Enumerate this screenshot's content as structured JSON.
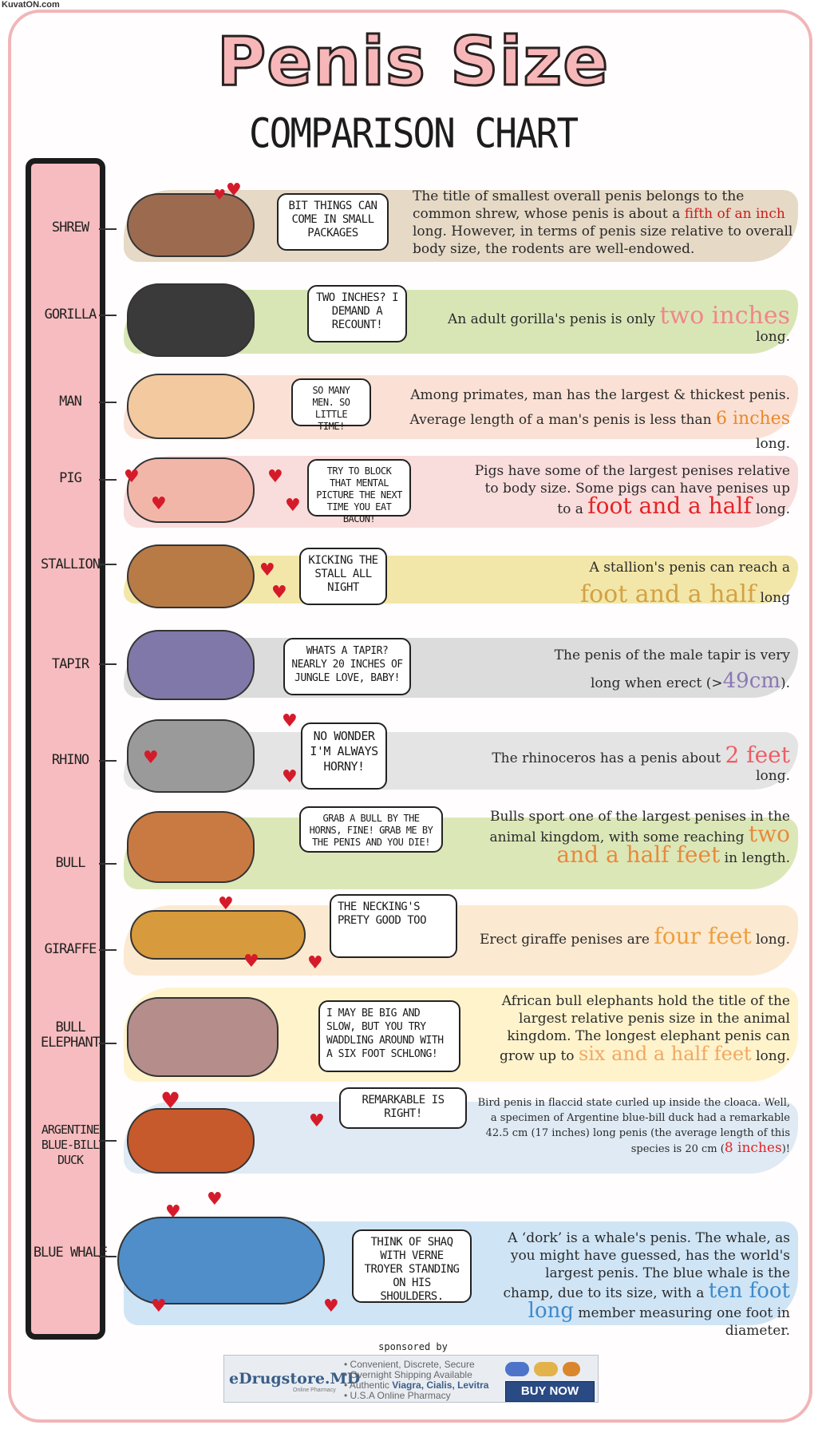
{
  "watermark": "KuvatON.com",
  "title": "Penis Size",
  "subtitle": "COMPARISON CHART",
  "rows": [
    {
      "label": "SHREW",
      "bubble": "BIT THINGS CAN COME IN SMALL PACKAGES",
      "desc_parts": [
        "The title of smallest overall penis belongs to the common shrew, whose penis is about a ",
        "fifth of an inch",
        " long. However, in terms of penis size relative to overall body size, the rodents are well-endowed."
      ]
    },
    {
      "label": "GORILLA",
      "bubble": "TWO INCHES? I DEMAND A RECOUNT!",
      "desc_parts": [
        "An adult gorilla's penis is only ",
        "two inches",
        " long."
      ]
    },
    {
      "label": "MAN",
      "bubble": "SO MANY MEN. SO LITTLE TIME!",
      "desc_parts": [
        "Among primates, man has the largest & thickest penis. Average length of a man's penis is less than ",
        "6 inches",
        " long."
      ]
    },
    {
      "label": "PIG",
      "bubble": "TRY TO BLOCK THAT MENTAL PICTURE THE NEXT TIME YOU EAT BACON!",
      "desc_parts": [
        "Pigs have some of the largest penises relative to body size. Some pigs can have penises up to a ",
        "foot and a half",
        " long."
      ]
    },
    {
      "label": "STALLION",
      "bubble": "KICKING THE STALL ALL NIGHT",
      "desc_parts": [
        "A stallion's penis can reach a ",
        "foot and a half",
        " long"
      ]
    },
    {
      "label": "TAPIR",
      "bubble": "WHATS A TAPIR? NEARLY 20 INCHES OF JUNGLE LOVE, BABY!",
      "desc_parts": [
        "The penis of the male tapir is very long when erect (>",
        "49cm",
        ")."
      ]
    },
    {
      "label": "RHINO",
      "bubble": "NO WONDER I'M ALWAYS HORNY!",
      "desc_parts": [
        "The rhinoceros has a penis about ",
        "2 feet",
        " long."
      ]
    },
    {
      "label": "BULL",
      "bubble": "GRAB A BULL BY THE HORNS, FINE! GRAB ME BY THE PENIS AND YOU DIE!",
      "desc_parts": [
        "Bulls sport one of the largest penises in the animal kingdom, with some reaching ",
        "two and a half feet",
        " in length."
      ]
    },
    {
      "label": "GIRAFFE",
      "bubble": "THE NECKING'S PRETY GOOD TOO",
      "desc_parts": [
        "Erect giraffe penises are ",
        "four feet",
        " long."
      ]
    },
    {
      "label": "BULL ELEPHANT",
      "bubble": "I MAY BE BIG AND SLOW, BUT YOU TRY WADDLING AROUND WITH A SIX FOOT SCHLONG!",
      "desc_parts": [
        "African bull elephants hold the title of the largest relative penis size in the animal kingdom. The longest elephant penis can grow up to ",
        "six and a half feet",
        " long."
      ]
    },
    {
      "label": "ARGENTINE BLUE-BILL DUCK",
      "bubble": "REMARKABLE IS RIGHT!",
      "desc_parts": [
        "Bird penis in flaccid state curled up inside the cloaca. Well, a specimen of Argentine blue-bill duck had a remarkable 42.5 cm (17 inches) long penis (the average length of this species is 20 cm (",
        "8 inches",
        ")!"
      ]
    },
    {
      "label": "BLUE WHALE",
      "bubble": "THINK OF SHAQ WITH VERNE TROYER STANDING ON HIS SHOULDERS.",
      "desc_parts": [
        "A ‘dork’ is a whale's penis. The whale, as you might have guessed, has the world's largest penis. The blue whale is the champ, due to its size, with a ",
        "ten foot long",
        " member measuring one foot in diameter."
      ]
    }
  ],
  "sponsor": {
    "label": "sponsored by",
    "brand": "eDrugstore.MD",
    "brand_sub": "Online Pharmacy",
    "line1": "• Convenient, Discrete, Secure",
    "line2": "• Overnight Shipping Available",
    "line3_pre": "• Authentic ",
    "line3_bold": "Viagra, Cialis, Levitra",
    "line4": "• U.S.A Online Pharmacy",
    "button": "BUY NOW"
  }
}
